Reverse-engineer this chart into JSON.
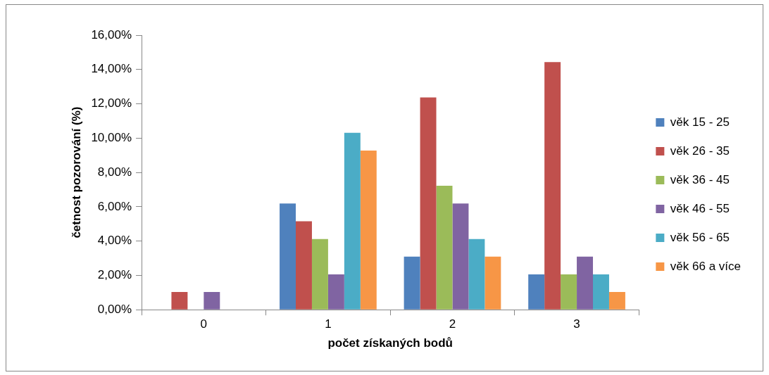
{
  "chart_data": {
    "type": "bar",
    "xlabel": "počet získaných bodů",
    "ylabel": "četnost pozorování (%)",
    "categories": [
      "0",
      "1",
      "2",
      "3"
    ],
    "series": [
      {
        "name": "věk 15 - 25",
        "color": "#4f81bd",
        "values": [
          0,
          6.19,
          3.09,
          2.06
        ]
      },
      {
        "name": "věk 26 - 35",
        "color": "#c0504d",
        "values": [
          1.03,
          5.15,
          12.37,
          14.43
        ]
      },
      {
        "name": "věk 36 - 45",
        "color": "#9bbb59",
        "values": [
          0,
          4.12,
          7.22,
          2.06
        ]
      },
      {
        "name": "věk 46 - 55",
        "color": "#8064a2",
        "values": [
          1.03,
          2.06,
          6.19,
          3.09
        ]
      },
      {
        "name": "věk 56 - 65",
        "color": "#4bacc6",
        "values": [
          0,
          10.31,
          4.12,
          2.06
        ]
      },
      {
        "name": "věk 66 a více",
        "color": "#f79646",
        "values": [
          0,
          9.28,
          3.09,
          1.03
        ]
      }
    ],
    "ylim": [
      0,
      16
    ],
    "yticks": [
      {
        "value": 0,
        "label": "0,00%"
      },
      {
        "value": 2,
        "label": "2,00%"
      },
      {
        "value": 4,
        "label": "4,00%"
      },
      {
        "value": 6,
        "label": "6,00%"
      },
      {
        "value": 8,
        "label": "8,00%"
      },
      {
        "value": 10,
        "label": "10,00%"
      },
      {
        "value": 12,
        "label": "12,00%"
      },
      {
        "value": 14,
        "label": "14,00%"
      },
      {
        "value": 16,
        "label": "16,00%"
      }
    ],
    "grid": false,
    "legend": "right"
  }
}
